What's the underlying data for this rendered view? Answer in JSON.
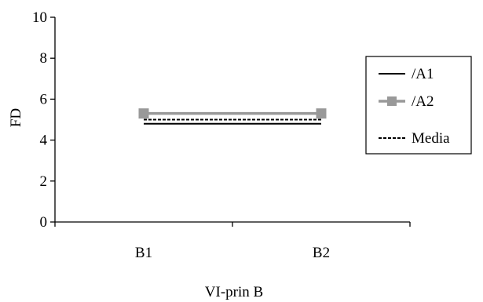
{
  "chart_data": {
    "type": "line",
    "title": "",
    "xlabel": "VI-prin B",
    "ylabel": "FD",
    "categories": [
      "B1",
      "B2"
    ],
    "ylim": [
      0,
      10
    ],
    "yticks": [
      "0",
      "2",
      "4",
      "6",
      "8",
      "10"
    ],
    "grid": false,
    "legend_position": "right",
    "series": [
      {
        "name": "/A1",
        "values": [
          4.8,
          4.8
        ],
        "color": "#000000",
        "style": "solid",
        "marker": "none"
      },
      {
        "name": "/A2",
        "values": [
          5.3,
          5.3
        ],
        "color": "#999999",
        "style": "solid",
        "marker": "square"
      },
      {
        "name": "Media",
        "values": [
          5.0,
          5.0
        ],
        "color": "#000000",
        "style": "dashed",
        "marker": "none"
      }
    ]
  }
}
